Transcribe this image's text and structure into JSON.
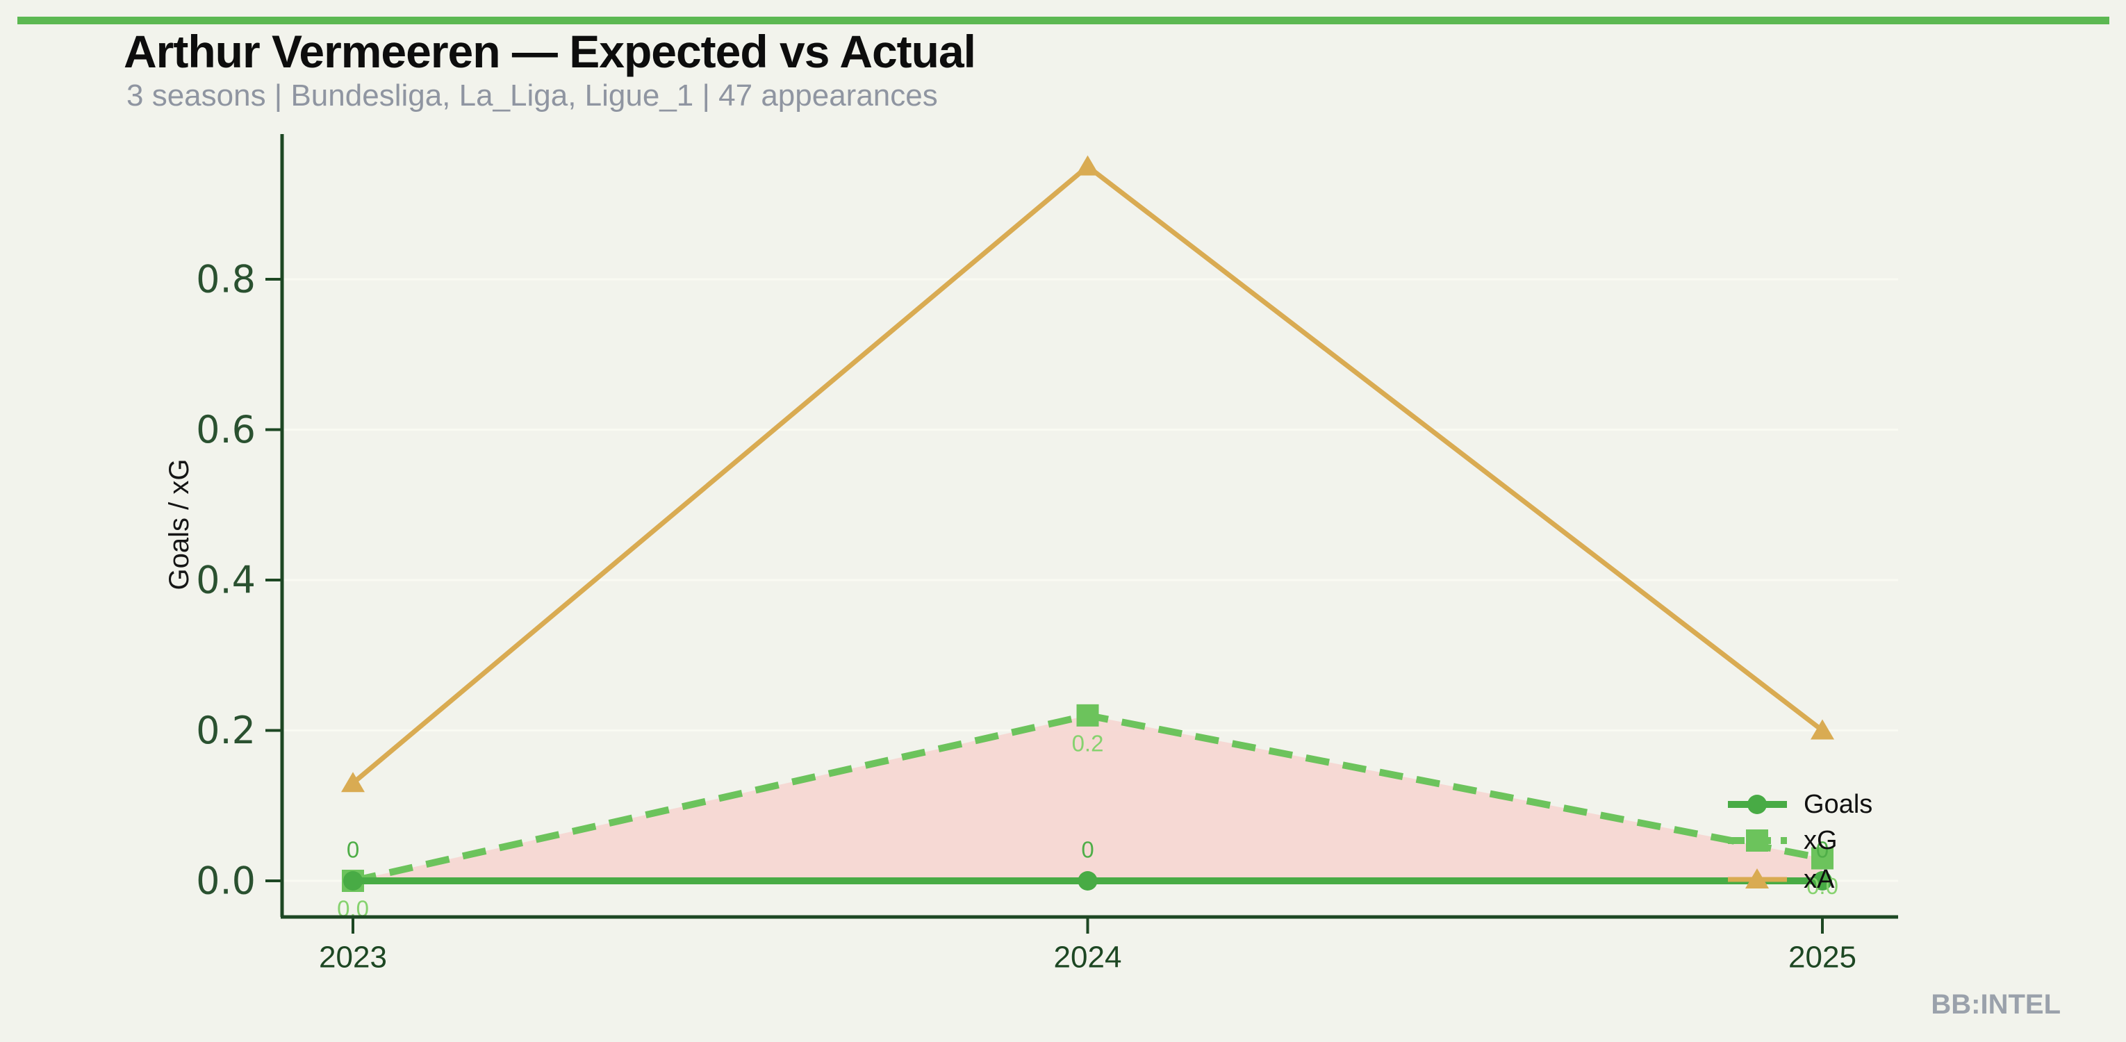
{
  "header": {
    "title": "Arthur Vermeeren — Expected vs Actual",
    "subtitle": "3 seasons | Bundesliga, La_Liga, Ligue_1 | 47 appearances"
  },
  "footer": {
    "watermark": "BB:INTEL"
  },
  "chart_data": {
    "type": "line",
    "title": "Arthur Vermeeren — Expected vs Actual",
    "subtitle": "3 seasons | Bundesliga, La_Liga, Ligue_1 | 47 appearances",
    "xlabel": "",
    "ylabel": "Goals / xG",
    "categories": [
      "2023",
      "2024",
      "2025"
    ],
    "yticks": [
      0.0,
      0.2,
      0.4,
      0.6,
      0.8
    ],
    "ytick_labels": [
      "0.0",
      "0.2",
      "0.4",
      "0.6",
      "0.8"
    ],
    "ylim": [
      -0.05,
      1.0
    ],
    "grid": true,
    "legend_position": "inside-right",
    "series": [
      {
        "name": "Goals",
        "marker": "circle",
        "line_style": "solid",
        "line_width": 10,
        "color": "#48ab45",
        "values": [
          0,
          0,
          0
        ],
        "point_labels": [
          "0",
          "0",
          "0"
        ],
        "point_label_color": "#4fae48",
        "point_label_position": "above"
      },
      {
        "name": "xG",
        "marker": "square",
        "line_style": "dashed",
        "line_width": 10,
        "color": "#6cc35c",
        "values": [
          0.0,
          0.22,
          0.03
        ],
        "point_labels": [
          "0.0",
          "0.2",
          "0.0"
        ],
        "point_label_color": "#86d26f",
        "point_label_position": "below"
      },
      {
        "name": "xA",
        "marker": "triangle-up",
        "line_style": "solid",
        "line_width": 7,
        "color": "#d9ab52",
        "values": [
          0.13,
          0.95,
          0.2
        ],
        "point_labels": null
      }
    ],
    "fill_between": {
      "between": [
        "xG",
        "Goals"
      ],
      "color": "#f6d7d3",
      "opacity": 0.95
    },
    "style": {
      "background": "#f2f3ec",
      "accent_bar": "#5cb852",
      "axis_color": "#1d4723",
      "xtick_color": "#1d4723",
      "ytick_color": "#2a5130",
      "grid_color": "#f9faf2",
      "ylabel_color": "#151515",
      "legend_text_color": "#101010"
    }
  }
}
